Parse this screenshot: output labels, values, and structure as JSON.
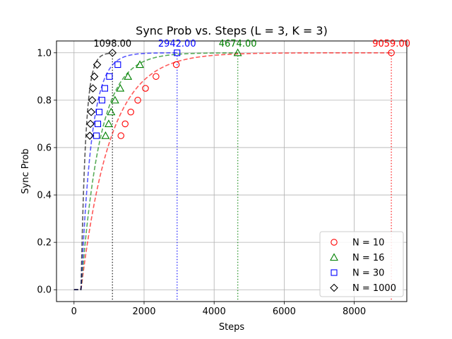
{
  "chart_data": {
    "type": "line",
    "title": "Sync Prob vs. Steps (L = 3, K = 3)",
    "xlabel": "Steps",
    "ylabel": "Sync Prob",
    "xlim": [
      -500,
      9500
    ],
    "ylim": [
      -0.05,
      1.05
    ],
    "xticks": [
      0,
      2000,
      4000,
      6000,
      8000
    ],
    "yticks": [
      0.0,
      0.2,
      0.4,
      0.6,
      0.8,
      1.0
    ],
    "xtick_labels": [
      "0",
      "2000",
      "4000",
      "6000",
      "8000"
    ],
    "ytick_labels": [
      "0.0",
      "0.2",
      "0.4",
      "0.6",
      "0.8",
      "1.0"
    ],
    "grid": true,
    "legend_position": "bottom-right",
    "series": [
      {
        "name": "N = 10",
        "color": "#ff0000",
        "marker": "circle",
        "points": [
          [
            1340,
            0.65
          ],
          [
            1460,
            0.7
          ],
          [
            1620,
            0.75
          ],
          [
            1820,
            0.8
          ],
          [
            2040,
            0.85
          ],
          [
            2340,
            0.9
          ],
          [
            2920,
            0.95
          ],
          [
            9059,
            1.0
          ]
        ],
        "final_step": 9059,
        "annotation": "9059.00",
        "fit_rate": 0.0012
      },
      {
        "name": "N = 16",
        "color": "#008000",
        "marker": "triangle",
        "points": [
          [
            900,
            0.65
          ],
          [
            990,
            0.7
          ],
          [
            1060,
            0.75
          ],
          [
            1170,
            0.8
          ],
          [
            1320,
            0.85
          ],
          [
            1540,
            0.9
          ],
          [
            1880,
            0.95
          ],
          [
            4674,
            1.0
          ]
        ],
        "final_step": 4674,
        "annotation": "4674.00",
        "fit_rate": 0.00185
      },
      {
        "name": "N = 30",
        "color": "#0000ff",
        "marker": "square",
        "points": [
          [
            640,
            0.65
          ],
          [
            680,
            0.7
          ],
          [
            720,
            0.75
          ],
          [
            800,
            0.8
          ],
          [
            880,
            0.85
          ],
          [
            1010,
            0.9
          ],
          [
            1250,
            0.95
          ],
          [
            2942,
            1.0
          ]
        ],
        "final_step": 2942,
        "annotation": "2942.00",
        "fit_rate": 0.0033
      },
      {
        "name": "N = 1000",
        "color": "#000000",
        "marker": "diamond",
        "points": [
          [
            450,
            0.65
          ],
          [
            470,
            0.7
          ],
          [
            490,
            0.75
          ],
          [
            520,
            0.8
          ],
          [
            540,
            0.85
          ],
          [
            580,
            0.9
          ],
          [
            660,
            0.95
          ],
          [
            1098,
            1.0
          ]
        ],
        "final_step": 1098,
        "annotation": "1098.00",
        "fit_rate": 0.0075
      }
    ]
  }
}
